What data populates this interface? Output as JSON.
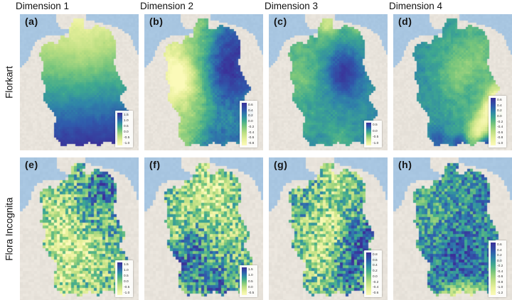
{
  "figure": {
    "column_headers": [
      "Dimension 1",
      "Dimension 2",
      "Dimension 3",
      "Dimension 4"
    ],
    "row_labels": [
      "Florkart",
      "Flora Incognita"
    ]
  },
  "colors": {
    "sea": "#a8c6e1",
    "land": "#e8e3db",
    "colorbar_max_color": "#3b2f98",
    "colorbar_min_color": "#fbfab9",
    "cmap_stops": [
      0,
      0.14,
      0.3,
      0.45,
      0.58,
      0.7,
      0.82,
      1
    ],
    "cmap_colors": [
      "#fbfab9",
      "#e8f09c",
      "#bade82",
      "#77c57c",
      "#3fa98f",
      "#2f86a8",
      "#2f5cac",
      "#3b2f98"
    ]
  },
  "panels": [
    {
      "letter": "(a)",
      "dataset": "Florkart",
      "dimension": "Dimension 1",
      "colorbar_ticks": [
        "1.5",
        "1.0",
        "0.5",
        "0.0",
        "-0.5",
        "-1.0"
      ],
      "pattern": {
        "base": 0.56,
        "lin": [
          0.05,
          0.88
        ],
        "blobs": [
          [
            0.5,
            0.25,
            0.05,
            -0.06
          ]
        ],
        "noise": 0.06,
        "smooth": true
      }
    },
    {
      "letter": "(b)",
      "dataset": "Florkart",
      "dimension": "Dimension 2",
      "colorbar_ticks": [
        "0.6",
        "0.4",
        "0.2",
        "0.0",
        "-0.2",
        "-0.4",
        "-0.6",
        "-0.8"
      ],
      "pattern": {
        "base": 0.5,
        "lin": [
          0.55,
          0.08
        ],
        "blobs": [
          [
            0.18,
            0.45,
            0.02,
            -0.3
          ],
          [
            0.25,
            0.55,
            0.03,
            -0.15
          ],
          [
            0.72,
            0.25,
            0.06,
            0.28
          ],
          [
            0.68,
            0.5,
            0.04,
            0.22
          ],
          [
            0.55,
            0.95,
            0.03,
            0.18
          ],
          [
            0.1,
            0.3,
            0.02,
            -0.1
          ]
        ],
        "noise": 0.12,
        "smooth": true
      }
    },
    {
      "letter": "(c)",
      "dataset": "Florkart",
      "dimension": "Dimension 3",
      "colorbar_ticks": [
        "0.5",
        "0.0",
        "-0.5",
        "-1.0"
      ],
      "pattern": {
        "base": 0.6,
        "lin": [
          0.12,
          0.12
        ],
        "blobs": [
          [
            0.62,
            0.42,
            0.035,
            0.35
          ],
          [
            0.45,
            0.03,
            0.01,
            -0.35
          ],
          [
            0.75,
            0.03,
            0.01,
            -0.2
          ],
          [
            0.15,
            0.45,
            0.02,
            -0.1
          ],
          [
            0.6,
            0.97,
            0.02,
            -0.12
          ]
        ],
        "noise": 0.09,
        "smooth": true
      }
    },
    {
      "letter": "(d)",
      "dataset": "Florkart",
      "dimension": "Dimension 4",
      "colorbar_ticks": [
        "0.6",
        "0.4",
        "0.2",
        "0.0",
        "-0.2",
        "-0.4",
        "-0.6",
        "-0.8",
        "-1.0"
      ],
      "pattern": {
        "base": 0.6,
        "lin": [
          -0.12,
          0.02
        ],
        "blobs": [
          [
            0.5,
            0.42,
            0.04,
            -0.18
          ],
          [
            0.93,
            0.6,
            0.01,
            -0.45
          ],
          [
            0.85,
            0.72,
            0.012,
            -0.5
          ],
          [
            0.74,
            0.86,
            0.012,
            -0.45
          ],
          [
            0.62,
            0.97,
            0.015,
            -0.2
          ],
          [
            0.55,
            1.0,
            0.008,
            0.5
          ],
          [
            0.8,
            0.99,
            0.008,
            0.45
          ],
          [
            0.3,
            0.95,
            0.01,
            0.2
          ],
          [
            0.75,
            0.3,
            0.03,
            -0.1
          ]
        ],
        "noise": 0.1,
        "smooth": true
      }
    },
    {
      "letter": "(e)",
      "dataset": "Flora Incognita",
      "dimension": "Dimension 1",
      "colorbar_ticks": [
        "1.5",
        "1.0",
        "0.5",
        "0.0",
        "-0.5",
        "-1.0"
      ],
      "pattern": {
        "base": 0.42,
        "lin": [
          0.08,
          -0.02
        ],
        "blobs": [
          [
            0.72,
            0.2,
            0.06,
            0.33
          ],
          [
            0.5,
            0.42,
            0.04,
            0.1
          ],
          [
            0.3,
            0.5,
            0.05,
            -0.2
          ],
          [
            0.55,
            0.65,
            0.03,
            -0.15
          ],
          [
            0.72,
            0.38,
            0.006,
            -0.35
          ],
          [
            0.3,
            0.85,
            0.03,
            -0.1
          ]
        ],
        "noise": 0.3,
        "smooth": false
      }
    },
    {
      "letter": "(f)",
      "dataset": "Flora Incognita",
      "dimension": "Dimension 2",
      "colorbar_ticks": [
        "1.5",
        "1.0",
        "0.5",
        "0.0",
        "-0.5"
      ],
      "pattern": {
        "base": 0.46,
        "lin": [
          0.0,
          0.05
        ],
        "blobs": [
          [
            0.5,
            0.26,
            0.05,
            -0.27
          ],
          [
            0.15,
            0.5,
            0.015,
            -0.2
          ],
          [
            0.28,
            0.7,
            0.05,
            0.28
          ],
          [
            0.6,
            0.93,
            0.03,
            0.25
          ],
          [
            0.8,
            0.5,
            0.02,
            -0.1
          ]
        ],
        "noise": 0.3,
        "smooth": false
      }
    },
    {
      "letter": "(g)",
      "dataset": "Flora Incognita",
      "dimension": "Dimension 3",
      "colorbar_ticks": [
        "0.8",
        "0.6",
        "0.4",
        "0.2",
        "0.0",
        "-0.2",
        "-0.4",
        "-0.6"
      ],
      "pattern": {
        "base": 0.47,
        "lin": [
          0.05,
          0.05
        ],
        "blobs": [
          [
            0.45,
            0.48,
            0.035,
            -0.25
          ],
          [
            0.35,
            0.75,
            0.02,
            -0.15
          ],
          [
            0.8,
            0.6,
            0.05,
            0.3
          ],
          [
            0.65,
            0.85,
            0.03,
            0.18
          ],
          [
            0.55,
            0.12,
            0.015,
            -0.18
          ],
          [
            0.2,
            0.3,
            0.02,
            0.1
          ]
        ],
        "noise": 0.3,
        "smooth": false
      }
    },
    {
      "letter": "(h)",
      "dataset": "Flora Incognita",
      "dimension": "Dimension 4",
      "colorbar_ticks": [
        "0.6",
        "0.4",
        "0.2",
        "0.0",
        "-0.2",
        "-0.4",
        "-0.6",
        "-0.8",
        "-1.0",
        "-1.2"
      ],
      "pattern": {
        "base": 0.66,
        "lin": [
          0.03,
          0.08
        ],
        "blobs": [
          [
            0.5,
            0.7,
            0.05,
            0.16
          ],
          [
            0.25,
            0.4,
            0.04,
            -0.08
          ],
          [
            0.55,
            1.0,
            0.01,
            -0.55
          ],
          [
            0.72,
            0.99,
            0.008,
            -0.45
          ],
          [
            0.38,
            0.99,
            0.008,
            -0.35
          ],
          [
            0.85,
            0.2,
            0.02,
            0.1
          ]
        ],
        "noise": 0.22,
        "smooth": false
      }
    }
  ]
}
